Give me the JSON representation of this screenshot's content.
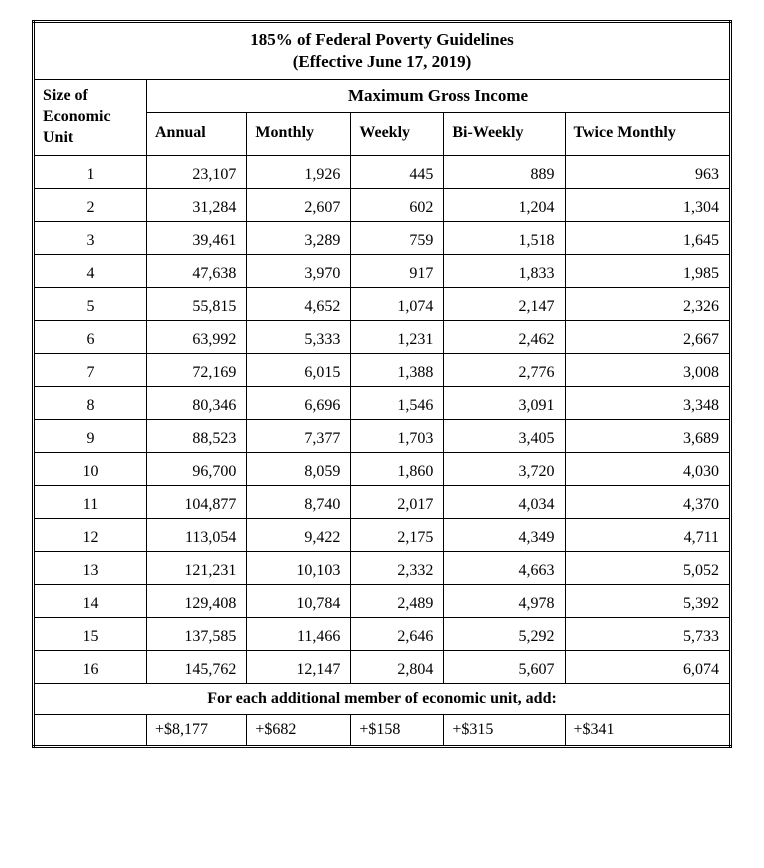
{
  "title_line1": "185% of Federal Poverty Guidelines",
  "title_line2": "(Effective June 17, 2019)",
  "header_size": "Size of Economic Unit",
  "header_max": "Maximum Gross Income",
  "columns": [
    "Annual",
    "Monthly",
    "Weekly",
    "Bi-Weekly",
    "Twice Monthly"
  ],
  "rows": [
    {
      "size": "1",
      "annual": "23,107",
      "monthly": "1,926",
      "weekly": "445",
      "biweekly": "889",
      "twicemonthly": "963"
    },
    {
      "size": "2",
      "annual": "31,284",
      "monthly": "2,607",
      "weekly": "602",
      "biweekly": "1,204",
      "twicemonthly": "1,304"
    },
    {
      "size": "3",
      "annual": "39,461",
      "monthly": "3,289",
      "weekly": "759",
      "biweekly": "1,518",
      "twicemonthly": "1,645"
    },
    {
      "size": "4",
      "annual": "47,638",
      "monthly": "3,970",
      "weekly": "917",
      "biweekly": "1,833",
      "twicemonthly": "1,985"
    },
    {
      "size": "5",
      "annual": "55,815",
      "monthly": "4,652",
      "weekly": "1,074",
      "biweekly": "2,147",
      "twicemonthly": "2,326"
    },
    {
      "size": "6",
      "annual": "63,992",
      "monthly": "5,333",
      "weekly": "1,231",
      "biweekly": "2,462",
      "twicemonthly": "2,667"
    },
    {
      "size": "7",
      "annual": "72,169",
      "monthly": "6,015",
      "weekly": "1,388",
      "biweekly": "2,776",
      "twicemonthly": "3,008"
    },
    {
      "size": "8",
      "annual": "80,346",
      "monthly": "6,696",
      "weekly": "1,546",
      "biweekly": "3,091",
      "twicemonthly": "3,348"
    },
    {
      "size": "9",
      "annual": "88,523",
      "monthly": "7,377",
      "weekly": "1,703",
      "biweekly": "3,405",
      "twicemonthly": "3,689"
    },
    {
      "size": "10",
      "annual": "96,700",
      "monthly": "8,059",
      "weekly": "1,860",
      "biweekly": "3,720",
      "twicemonthly": "4,030"
    },
    {
      "size": "11",
      "annual": "104,877",
      "monthly": "8,740",
      "weekly": "2,017",
      "biweekly": "4,034",
      "twicemonthly": "4,370"
    },
    {
      "size": "12",
      "annual": "113,054",
      "monthly": "9,422",
      "weekly": "2,175",
      "biweekly": "4,349",
      "twicemonthly": "4,711"
    },
    {
      "size": "13",
      "annual": "121,231",
      "monthly": "10,103",
      "weekly": "2,332",
      "biweekly": "4,663",
      "twicemonthly": "5,052"
    },
    {
      "size": "14",
      "annual": "129,408",
      "monthly": "10,784",
      "weekly": "2,489",
      "biweekly": "4,978",
      "twicemonthly": "5,392"
    },
    {
      "size": "15",
      "annual": "137,585",
      "monthly": "11,466",
      "weekly": "2,646",
      "biweekly": "5,292",
      "twicemonthly": "5,733"
    },
    {
      "size": "16",
      "annual": "145,762",
      "monthly": "12,147",
      "weekly": "2,804",
      "biweekly": "5,607",
      "twicemonthly": "6,074"
    }
  ],
  "additional_label": "For each additional member of economic unit, add:",
  "additional": {
    "annual": "+$8,177",
    "monthly": "+$682",
    "weekly": "+$158",
    "biweekly": "+$315",
    "twicemonthly": "+$341"
  }
}
